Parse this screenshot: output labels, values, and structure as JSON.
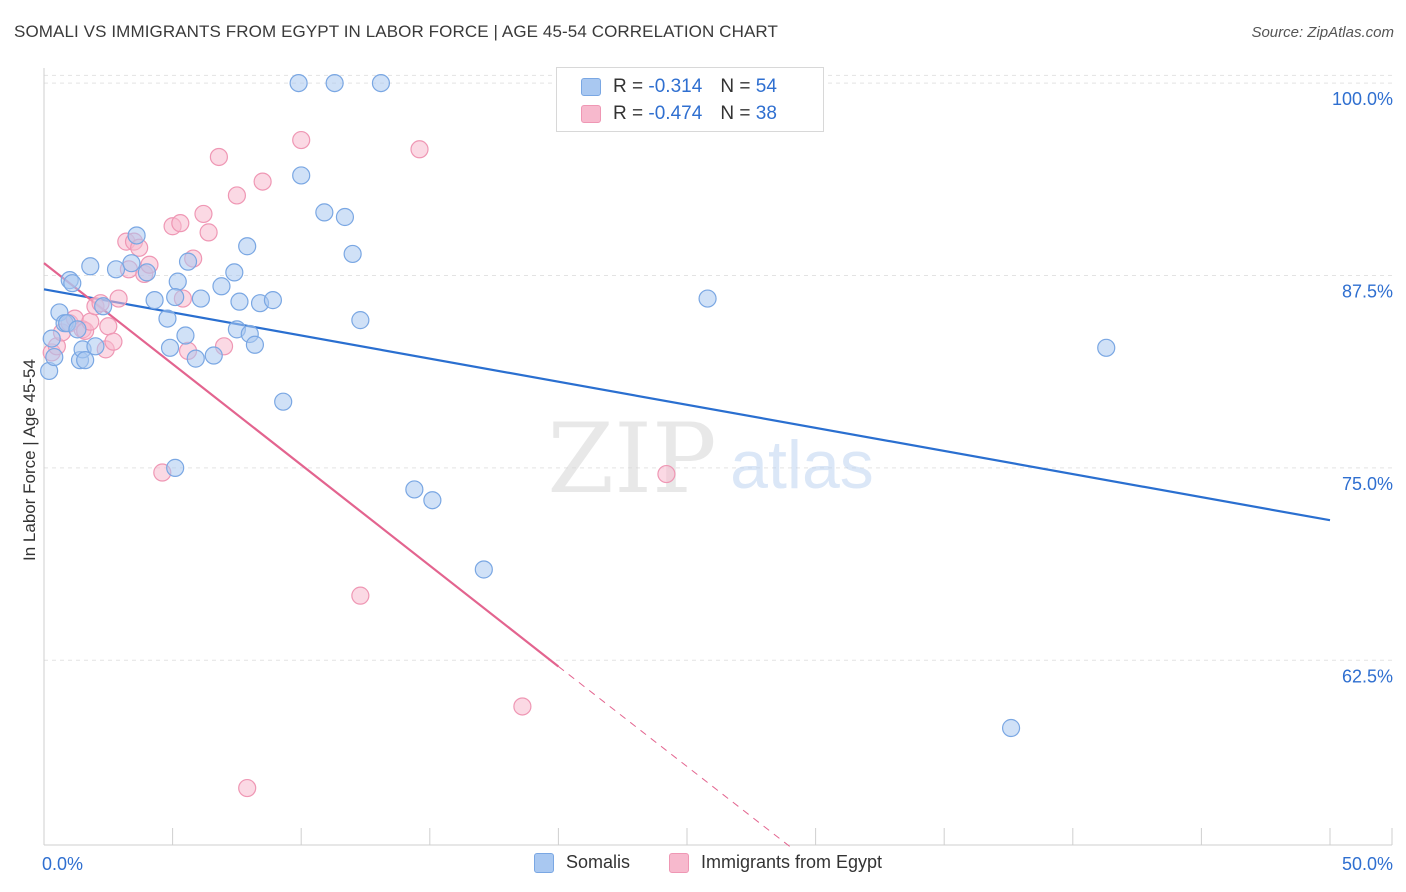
{
  "header": {
    "title": "SOMALI VS IMMIGRANTS FROM EGYPT IN LABOR FORCE | AGE 45-54 CORRELATION CHART",
    "source": "Source: ZipAtlas.com"
  },
  "watermark": {
    "zip": "ZIP",
    "atlas": "atlas"
  },
  "legend_top": {
    "rows": [
      {
        "r_label": "R =",
        "r_value": "-0.314",
        "n_label": "N =",
        "n_value": "54"
      },
      {
        "r_label": "R =",
        "r_value": "-0.474",
        "n_label": "N =",
        "n_value": "38"
      }
    ]
  },
  "chart_data": {
    "type": "scatter",
    "title": "SOMALI VS IMMIGRANTS FROM EGYPT IN LABOR FORCE | AGE 45-54 CORRELATION CHART",
    "xlabel": "",
    "ylabel": "In Labor Force | Age 45-54",
    "xlim": [
      0,
      50
    ],
    "ylim": [
      50.5,
      101.5
    ],
    "x_tick_labels": [
      "0.0%",
      "50.0%"
    ],
    "y_ticks": [
      62.5,
      75.0,
      87.5,
      100.0
    ],
    "y_tick_labels": [
      "62.5%",
      "75.0%",
      "87.5%",
      "100.0%"
    ],
    "grid": true,
    "legend_position": "bottom",
    "colors": {
      "somalis_fill": "#a9c8f1",
      "somalis_stroke": "#7aa7e3",
      "somalis_line": "#2a6fd0",
      "egypt_fill": "#f7b9cd",
      "egypt_stroke": "#ef97b4",
      "egypt_line": "#e3648f",
      "axis_text": "#2f6fd0",
      "grid": "#e3e3e3"
    },
    "series": [
      {
        "name": "Somalis",
        "x": [
          0.2,
          0.3,
          0.4,
          0.6,
          0.8,
          0.9,
          1.0,
          1.1,
          1.3,
          1.4,
          1.5,
          1.6,
          1.8,
          2.0,
          2.3,
          2.8,
          3.4,
          3.6,
          4.0,
          4.3,
          4.8,
          4.9,
          5.2,
          5.5,
          5.9,
          6.6,
          7.5,
          8.0,
          8.4,
          8.9,
          5.6,
          6.1,
          6.9,
          7.4,
          5.1,
          7.6,
          8.2,
          7.9,
          9.3,
          10.0,
          11.3,
          11.7,
          12.0,
          10.9,
          5.1,
          9.9,
          14.4,
          15.1,
          12.3,
          25.8,
          41.3,
          13.1,
          17.1,
          37.6
        ],
        "y": [
          81.3,
          83.4,
          82.2,
          85.1,
          84.4,
          84.4,
          87.2,
          87.0,
          84.0,
          82.0,
          82.7,
          82.0,
          88.1,
          82.9,
          85.5,
          87.9,
          88.3,
          90.1,
          87.7,
          85.9,
          84.7,
          82.8,
          87.1,
          83.6,
          82.1,
          82.3,
          84.0,
          83.7,
          85.7,
          85.9,
          88.4,
          86.0,
          86.8,
          87.7,
          75.0,
          85.8,
          83.0,
          89.4,
          79.3,
          94.0,
          100.0,
          91.3,
          88.9,
          91.6,
          86.1,
          100.0,
          73.6,
          72.9,
          84.6,
          86.0,
          82.8,
          100.0,
          68.4,
          58.1
        ]
      },
      {
        "name": "Immigrants from Egypt",
        "x": [
          0.3,
          0.5,
          0.7,
          1.0,
          1.2,
          1.5,
          1.6,
          1.8,
          2.0,
          2.2,
          2.4,
          2.5,
          2.7,
          2.9,
          3.2,
          3.3,
          3.5,
          3.7,
          3.9,
          4.1,
          4.6,
          5.0,
          5.3,
          5.4,
          5.6,
          5.8,
          6.2,
          6.4,
          6.8,
          7.0,
          7.5,
          8.5,
          10.0,
          12.3,
          14.6,
          18.6,
          24.2,
          7.9
        ],
        "y": [
          82.5,
          82.9,
          83.8,
          84.4,
          84.7,
          84.0,
          83.9,
          84.5,
          85.5,
          85.7,
          82.7,
          84.2,
          83.2,
          86.0,
          89.7,
          87.9,
          89.7,
          89.3,
          87.6,
          88.2,
          74.7,
          90.7,
          90.9,
          86.0,
          82.6,
          88.6,
          91.5,
          90.3,
          95.2,
          82.9,
          92.7,
          93.6,
          96.3,
          66.7,
          95.7,
          59.5,
          74.6,
          54.2
        ]
      }
    ],
    "trend_lines": [
      {
        "series": "Somalis",
        "x": [
          0.0,
          50.0
        ],
        "y": [
          86.6,
          71.6
        ],
        "style": "solid"
      },
      {
        "series": "Immigrants from Egypt",
        "x": [
          0.0,
          20.0
        ],
        "y": [
          88.3,
          62.1
        ],
        "style": "solid"
      },
      {
        "series": "Immigrants from Egypt",
        "x": [
          20.0,
          29.0
        ],
        "y": [
          62.1,
          50.4
        ],
        "style": "dashed"
      }
    ]
  },
  "legend_bottom": {
    "items": [
      "Somalis",
      "Immigrants from Egypt"
    ]
  }
}
